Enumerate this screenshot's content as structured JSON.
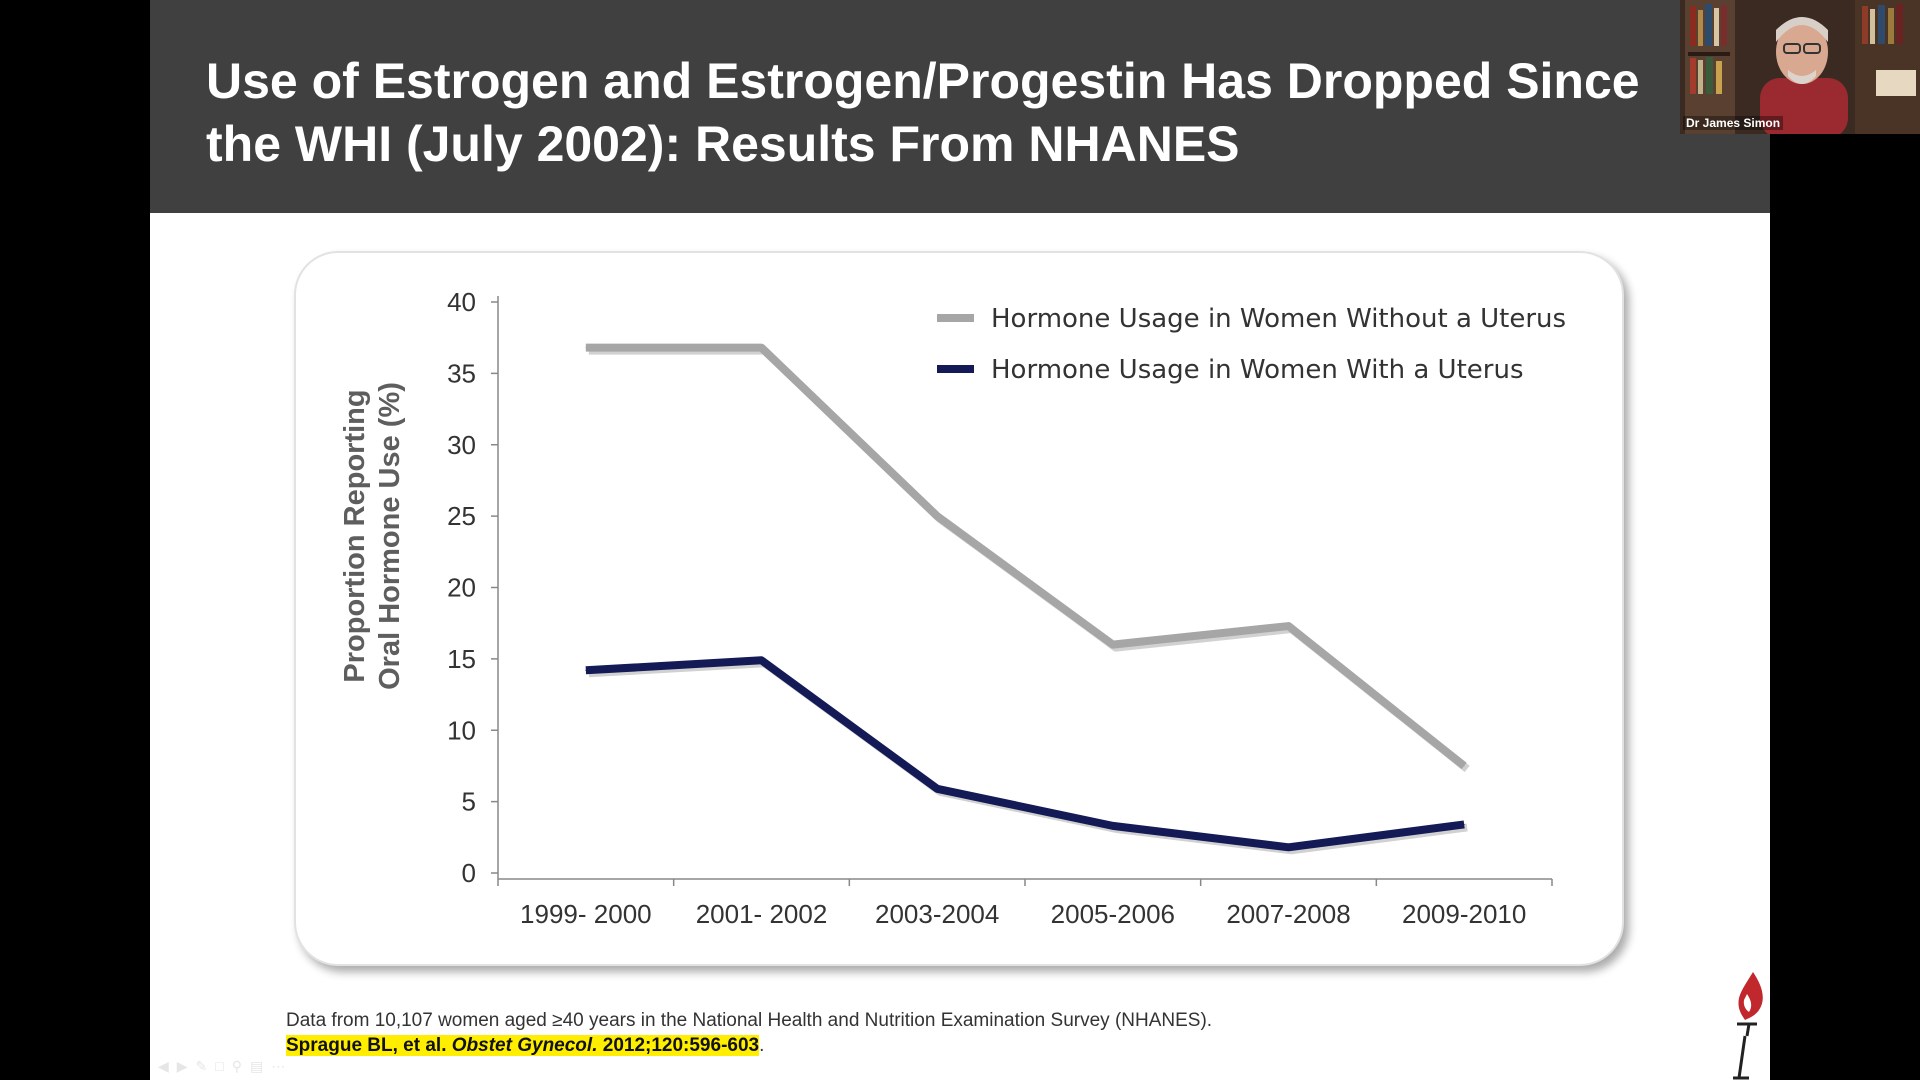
{
  "slide": {
    "title_line1": "Use of Estrogen and Estrogen/Progestin Has Dropped Since",
    "title_line2": "the WHI (July 2002): Results From NHANES",
    "footnote": "Data from 10,107 women aged ≥40 years in the National Health and Nutrition Examination Survey (NHANES).",
    "citation_authors": "Sprague BL, et al. ",
    "citation_journal": "Obstet Gynecol.",
    "citation_ref": " 2012;120:596-603",
    "citation_period": "."
  },
  "webcam": {
    "name": "Dr James Simon"
  },
  "colors": {
    "title_bar": "#404040",
    "series_without_uterus": "#a6a6a6",
    "series_with_uterus": "#131a55",
    "citation_highlight": "#ffee00",
    "logo": "#c0282d"
  },
  "chart_data": {
    "type": "line",
    "categories": [
      "1999- 2000",
      "2001- 2002",
      "2003-2004",
      "2005-2006",
      "2007-2008",
      "2009-2010"
    ],
    "ylabel_line1": "Proportion Reporting",
    "ylabel_line2": "Oral Hormone Use (%)",
    "ylim": [
      0,
      40
    ],
    "yticks": [
      "0",
      "5",
      "10",
      "15",
      "20",
      "25",
      "30",
      "35",
      "40"
    ],
    "legend_position": "top-right",
    "grid": false,
    "series": [
      {
        "name": "Hormone Usage in Women Without a Uterus",
        "color": "#a6a6a6",
        "points": [
          [
            0,
            36.8
          ],
          [
            1,
            36.8
          ],
          [
            2,
            25.0
          ],
          [
            3,
            16.0
          ],
          [
            4,
            17.3
          ],
          [
            5,
            7.5
          ]
        ]
      },
      {
        "name": "Hormone Usage in Women With a Uterus",
        "color": "#131a55",
        "points": [
          [
            0,
            14.2
          ],
          [
            1,
            14.9
          ],
          [
            2,
            5.9
          ],
          [
            3,
            3.3
          ],
          [
            4,
            1.8
          ],
          [
            5,
            3.4
          ]
        ]
      }
    ]
  }
}
